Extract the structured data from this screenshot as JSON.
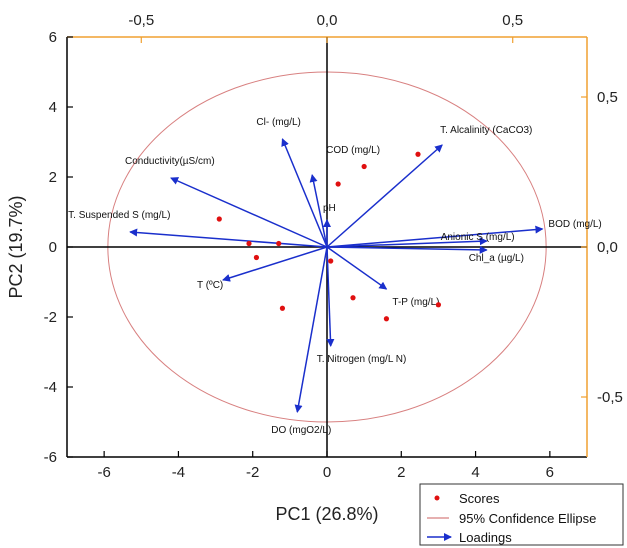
{
  "chart_data": {
    "type": "scatter",
    "subtype": "pca-biplot",
    "xlabel": "PC1 (26.8%)",
    "ylabel": "PC2 (19.7%)",
    "xlim": [
      -7,
      7
    ],
    "ylim": [
      -6,
      6
    ],
    "x_ticks": [
      -6,
      -4,
      -2,
      0,
      2,
      4,
      6
    ],
    "y_ticks": [
      -6,
      -4,
      -2,
      0,
      2,
      4,
      6
    ],
    "top_axis": {
      "lim": [
        -0.7,
        0.7
      ],
      "ticks": [
        -0.5,
        0.0,
        0.5
      ],
      "tick_labels": [
        "-0,5",
        "0,0",
        "0,5"
      ],
      "color": "#f0a030"
    },
    "right_axis": {
      "lim": [
        -0.7,
        0.7
      ],
      "ticks": [
        0.5,
        0.0,
        -0.5
      ],
      "tick_labels": [
        "0,5",
        "0,0",
        "-0,5"
      ],
      "color": "#f0a030"
    },
    "crosshair": true,
    "grid": false,
    "series": [
      {
        "name": "Scores",
        "kind": "points",
        "color": "#e01010",
        "points": [
          [
            -2.9,
            0.8
          ],
          [
            -2.1,
            0.1
          ],
          [
            -1.9,
            -0.3
          ],
          [
            -1.3,
            0.1
          ],
          [
            -1.2,
            -1.75
          ],
          [
            0.1,
            -0.4
          ],
          [
            0.3,
            1.8
          ],
          [
            1.0,
            2.3
          ],
          [
            0.7,
            -1.45
          ],
          [
            1.6,
            -2.05
          ],
          [
            2.45,
            2.65
          ],
          [
            3.0,
            -1.65
          ]
        ]
      },
      {
        "name": "95% Confidence Ellipse",
        "kind": "ellipse",
        "color": "#d88080",
        "center": [
          0,
          0
        ],
        "rx": 5.9,
        "ry": 5.0
      },
      {
        "name": "Loadings",
        "kind": "vectors",
        "color": "#1a2fcc",
        "vectors": [
          {
            "label": "Cl- (mg/L)",
            "x": -0.12,
            "y": 0.36
          },
          {
            "label": "T. Alcalinity (CaCO3)",
            "x": 0.31,
            "y": 0.34
          },
          {
            "label": "COD (mg/L)",
            "x": -0.04,
            "y": 0.24
          },
          {
            "label": "Conductivity(µS/cm)",
            "x": -0.42,
            "y": 0.23
          },
          {
            "label": "pH",
            "x": 0.0,
            "y": 0.09
          },
          {
            "label": "T. Suspended S (mg/L)",
            "x": -0.53,
            "y": 0.05
          },
          {
            "label": "BOD (mg/L)",
            "x": 0.58,
            "y": 0.06
          },
          {
            "label": "Anionic S (mg/L)",
            "x": 0.43,
            "y": 0.02
          },
          {
            "label": "Chl_a (µg/L)",
            "x": 0.43,
            "y": -0.01
          },
          {
            "label": "T (ºC)",
            "x": -0.28,
            "y": -0.11
          },
          {
            "label": "T-P (mg/L)",
            "x": 0.16,
            "y": -0.14
          },
          {
            "label": "T. Nitrogen (mg/L N)",
            "x": 0.01,
            "y": -0.33
          },
          {
            "label": "DO (mgO2/L)",
            "x": -0.08,
            "y": -0.55
          }
        ]
      }
    ],
    "legend": {
      "placement": "bottom-right",
      "entries": [
        "Scores",
        "95% Confidence Ellipse",
        "Loadings"
      ]
    }
  }
}
